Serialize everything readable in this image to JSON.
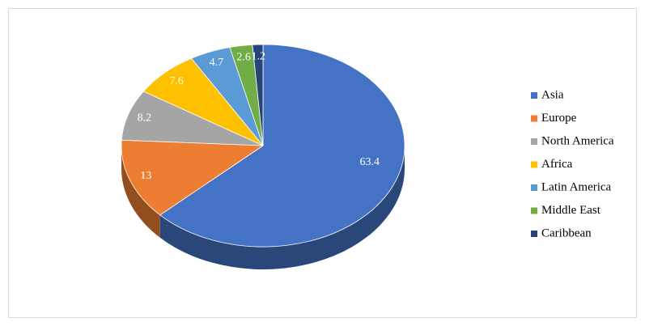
{
  "chart_data": {
    "type": "pie3d",
    "categories": [
      "Asia",
      "Europe",
      "North America",
      "Africa",
      "Latin America",
      "Middle East",
      "Caribbean"
    ],
    "values": [
      63.4,
      13,
      8.2,
      7.6,
      4.7,
      2.6,
      1.2
    ],
    "colors": [
      "#4472c4",
      "#ed7d31",
      "#a5a5a5",
      "#ffc000",
      "#5b9bd5",
      "#70ad47",
      "#264478"
    ],
    "legend": "right"
  }
}
